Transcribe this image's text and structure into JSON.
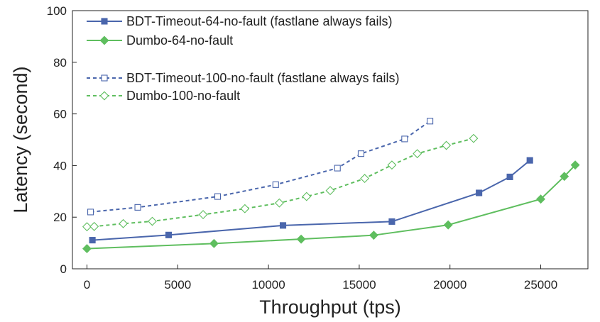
{
  "chart_data": {
    "type": "line",
    "xlabel": "Throughput (tps)",
    "ylabel": "Latency (second)",
    "xlim": [
      -800,
      27600
    ],
    "ylim": [
      0,
      100
    ],
    "xticks": [
      0,
      5000,
      10000,
      15000,
      20000,
      25000
    ],
    "yticks": [
      0,
      20,
      40,
      60,
      80,
      100
    ],
    "grid": false,
    "legend_position": "top-left",
    "series": [
      {
        "name": "BDT-Timeout-64-no-fault (fastlane always fails)",
        "color": "#4a66ac",
        "marker": "square",
        "filled": true,
        "dashed": false,
        "points": [
          {
            "x": 300,
            "y": 11.1
          },
          {
            "x": 4500,
            "y": 13.1
          },
          {
            "x": 10800,
            "y": 16.8
          },
          {
            "x": 16800,
            "y": 18.3
          },
          {
            "x": 21600,
            "y": 29.4
          },
          {
            "x": 23300,
            "y": 35.6
          },
          {
            "x": 24400,
            "y": 42.0
          }
        ]
      },
      {
        "name": "Dumbo-64-no-fault",
        "color": "#5fbe5f",
        "marker": "diamond",
        "filled": true,
        "dashed": false,
        "points": [
          {
            "x": 0,
            "y": 7.8
          },
          {
            "x": 7000,
            "y": 9.8
          },
          {
            "x": 11800,
            "y": 11.5
          },
          {
            "x": 15800,
            "y": 13.0
          },
          {
            "x": 19900,
            "y": 17.0
          },
          {
            "x": 25000,
            "y": 27.0
          },
          {
            "x": 26300,
            "y": 35.8
          },
          {
            "x": 26900,
            "y": 40.2
          }
        ]
      },
      {
        "name": "BDT-Timeout-100-no-fault (fastlane always fails)",
        "color": "#4a66ac",
        "marker": "square",
        "filled": false,
        "dashed": true,
        "points": [
          {
            "x": 200,
            "y": 22.0
          },
          {
            "x": 2800,
            "y": 23.8
          },
          {
            "x": 7200,
            "y": 28.0
          },
          {
            "x": 10400,
            "y": 32.6
          },
          {
            "x": 13800,
            "y": 39.0
          },
          {
            "x": 15100,
            "y": 44.6
          },
          {
            "x": 17500,
            "y": 50.3
          },
          {
            "x": 18900,
            "y": 57.2
          }
        ]
      },
      {
        "name": "Dumbo-100-no-fault",
        "color": "#5fbe5f",
        "marker": "diamond",
        "filled": false,
        "dashed": true,
        "points": [
          {
            "x": 0,
            "y": 16.3
          },
          {
            "x": 400,
            "y": 16.4
          },
          {
            "x": 2000,
            "y": 17.5
          },
          {
            "x": 3600,
            "y": 18.4
          },
          {
            "x": 6400,
            "y": 21.0
          },
          {
            "x": 8700,
            "y": 23.3
          },
          {
            "x": 10600,
            "y": 25.5
          },
          {
            "x": 12100,
            "y": 28.0
          },
          {
            "x": 13400,
            "y": 30.3
          },
          {
            "x": 15300,
            "y": 35.0
          },
          {
            "x": 16800,
            "y": 40.2
          },
          {
            "x": 18200,
            "y": 44.6
          },
          {
            "x": 19800,
            "y": 47.8
          },
          {
            "x": 21300,
            "y": 50.5
          }
        ]
      }
    ]
  }
}
